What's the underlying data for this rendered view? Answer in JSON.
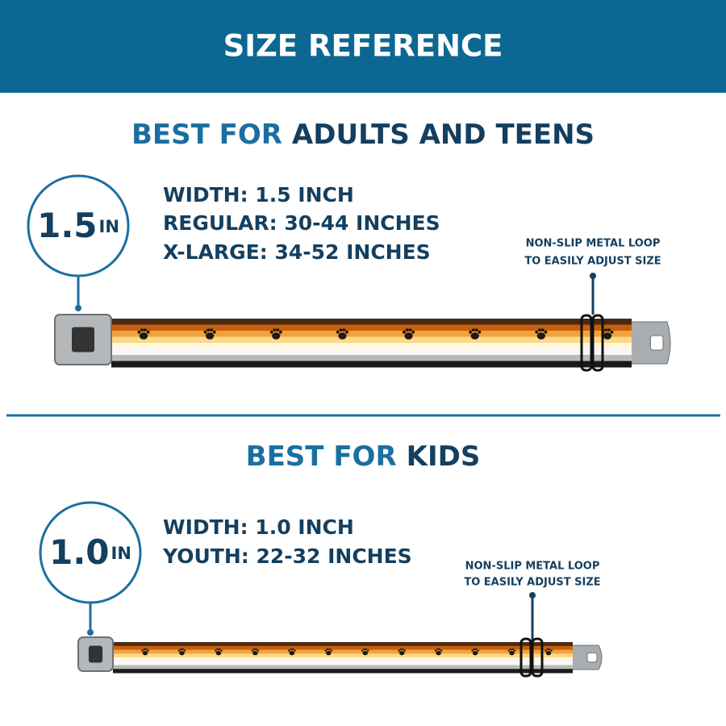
{
  "header": {
    "title": "SIZE REFERENCE"
  },
  "sections": [
    {
      "heading_lead": "BEST FOR",
      "heading_rest": "ADULTS AND TEENS",
      "badge_number": "1.5",
      "badge_unit": "IN",
      "specs": [
        "WIDTH: 1.5 INCH",
        "REGULAR: 30-44 INCHES",
        "X-LARGE: 34-52 INCHES"
      ],
      "loop_note": [
        "NON-SLIP METAL LOOP",
        "TO EASILY ADJUST SIZE"
      ]
    },
    {
      "heading_lead": "BEST FOR",
      "heading_rest": "KIDS",
      "badge_number": "1.0",
      "badge_unit": "IN",
      "specs": [
        "WIDTH: 1.0 INCH",
        "YOUTH: 22-32 INCHES"
      ],
      "loop_note": [
        "NON-SLIP METAL LOOP",
        "TO EASILY ADJUST SIZE"
      ]
    }
  ]
}
